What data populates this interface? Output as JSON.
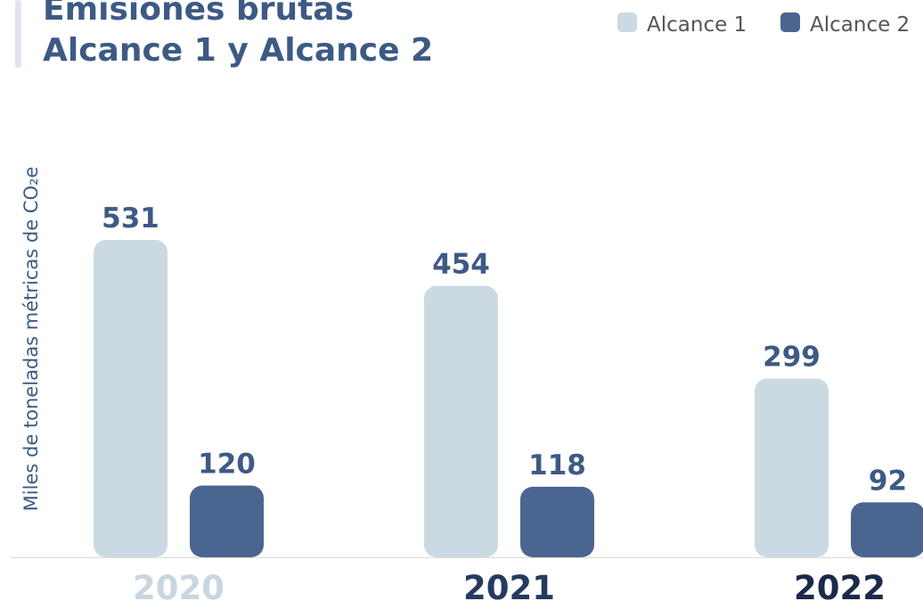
{
  "chart_data": {
    "type": "bar",
    "title": [
      "Emisiones brutas",
      "Alcance 1 y Alcance 2"
    ],
    "ylabel": "Miles de toneladas métricas de CO₂e",
    "categories": [
      "2020",
      "2021",
      "2022"
    ],
    "category_colors": [
      "#c9d6e0",
      "#253a60",
      "#1b2a4a"
    ],
    "series": [
      {
        "name": "Alcance 1",
        "color": "#cbd9e2",
        "values": [
          531,
          454,
          299
        ]
      },
      {
        "name": "Alcance 2",
        "color": "#4a6690",
        "values": [
          120,
          118,
          92
        ]
      }
    ],
    "legend": "top-right"
  }
}
